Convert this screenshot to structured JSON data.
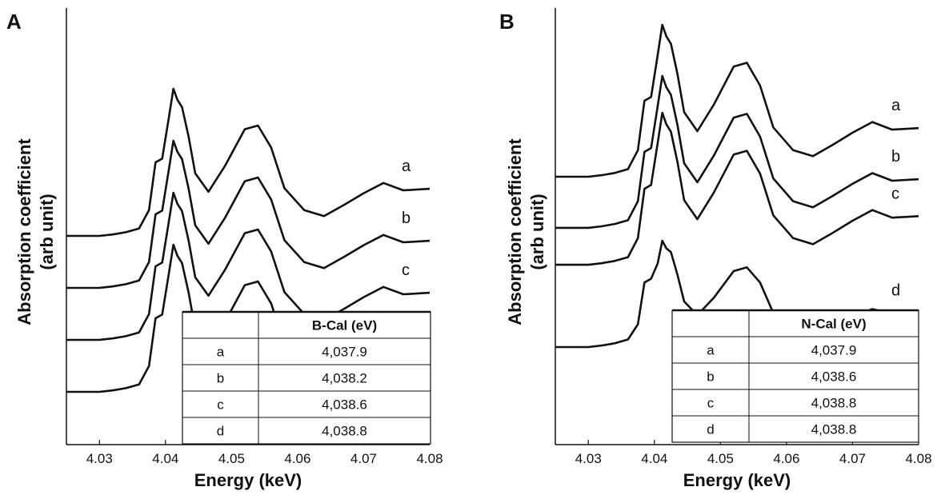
{
  "chart_data": [
    {
      "type": "line",
      "panel": "A",
      "xlabel": "Energy (keV)",
      "ylabel": [
        "Absorption coefficient",
        "(arb unit)"
      ],
      "xlim": [
        4.025,
        4.08
      ],
      "xticks": [
        "4.03",
        "4.04",
        "4.05",
        "4.06",
        "4.07",
        "4.08"
      ],
      "yticks": [],
      "series": [
        {
          "name": "a",
          "offset": 3,
          "x": [
            4.025,
            4.03,
            4.032,
            4.034,
            4.036,
            4.0375,
            4.0385,
            4.0395,
            4.0405,
            4.0412,
            4.0418,
            4.0425,
            4.0435,
            4.0445,
            4.0465,
            4.049,
            4.052,
            4.054,
            4.056,
            4.058,
            4.061,
            4.064,
            4.067,
            4.07,
            4.073,
            4.076,
            4.08
          ],
          "y": [
            0,
            0,
            0.02,
            0.05,
            0.1,
            0.35,
            1.0,
            1.05,
            1.6,
            2.0,
            1.85,
            1.75,
            1.35,
            0.85,
            0.6,
            0.95,
            1.45,
            1.5,
            1.2,
            0.65,
            0.35,
            0.27,
            0.42,
            0.58,
            0.72,
            0.62,
            0.64
          ]
        },
        {
          "name": "b",
          "offset": 2,
          "x": [
            4.025,
            4.03,
            4.032,
            4.034,
            4.036,
            4.0375,
            4.0385,
            4.0395,
            4.0405,
            4.0412,
            4.0418,
            4.0425,
            4.0435,
            4.0445,
            4.0465,
            4.049,
            4.052,
            4.054,
            4.056,
            4.058,
            4.061,
            4.064,
            4.067,
            4.07,
            4.073,
            4.076,
            4.08
          ],
          "y": [
            0,
            0,
            0.02,
            0.05,
            0.1,
            0.35,
            1.0,
            1.05,
            1.6,
            2.0,
            1.85,
            1.75,
            1.35,
            0.85,
            0.6,
            0.95,
            1.45,
            1.5,
            1.2,
            0.65,
            0.35,
            0.27,
            0.42,
            0.58,
            0.72,
            0.62,
            0.64
          ]
        },
        {
          "name": "c",
          "offset": 1,
          "x": [
            4.025,
            4.03,
            4.032,
            4.034,
            4.036,
            4.0375,
            4.0385,
            4.0395,
            4.0405,
            4.0412,
            4.0418,
            4.0425,
            4.0435,
            4.0445,
            4.0465,
            4.049,
            4.052,
            4.054,
            4.056,
            4.058,
            4.061,
            4.064,
            4.067,
            4.07,
            4.073,
            4.076,
            4.08
          ],
          "y": [
            0,
            0,
            0.02,
            0.05,
            0.1,
            0.35,
            1.0,
            1.05,
            1.6,
            2.0,
            1.85,
            1.75,
            1.35,
            0.85,
            0.6,
            0.95,
            1.45,
            1.5,
            1.2,
            0.65,
            0.35,
            0.27,
            0.42,
            0.58,
            0.72,
            0.62,
            0.64
          ]
        },
        {
          "name": "d",
          "offset": 0,
          "x": [
            4.025,
            4.03,
            4.032,
            4.034,
            4.036,
            4.0375,
            4.0385,
            4.0395,
            4.0405,
            4.0412,
            4.0418,
            4.0425,
            4.0435,
            4.0445,
            4.0465,
            4.049,
            4.052,
            4.054,
            4.056,
            4.058,
            4.061,
            4.064,
            4.067,
            4.07,
            4.073,
            4.076,
            4.08
          ],
          "y": [
            0,
            0,
            0.02,
            0.05,
            0.1,
            0.35,
            1.0,
            1.05,
            1.6,
            2.0,
            1.85,
            1.75,
            1.35,
            0.85,
            0.6,
            0.95,
            1.45,
            1.5,
            1.2,
            0.65,
            0.35,
            0.27,
            0.42,
            0.58,
            0.72,
            0.62,
            0.64
          ]
        }
      ],
      "table": {
        "header": [
          "",
          "B-Cal (eV)"
        ],
        "rows": [
          [
            "a",
            "4,037.9"
          ],
          [
            "b",
            "4,038.2"
          ],
          [
            "c",
            "4,038.6"
          ],
          [
            "d",
            "4,038.8"
          ]
        ]
      }
    },
    {
      "type": "line",
      "panel": "B",
      "xlabel": "Energy (keV)",
      "ylabel": [
        "Absorption coefficient",
        "(arb unit)"
      ],
      "xlim": [
        4.025,
        4.08
      ],
      "xticks": [
        "4.03",
        "4.04",
        "4.05",
        "4.06",
        "4.07",
        "4.08"
      ],
      "yticks": [],
      "series": [
        {
          "name": "a",
          "offset": 3,
          "x": [
            4.025,
            4.03,
            4.032,
            4.034,
            4.036,
            4.0375,
            4.0385,
            4.0395,
            4.0405,
            4.0412,
            4.0418,
            4.0425,
            4.0435,
            4.0445,
            4.0465,
            4.049,
            4.052,
            4.054,
            4.056,
            4.058,
            4.061,
            4.064,
            4.067,
            4.07,
            4.073,
            4.076,
            4.08
          ],
          "y": [
            0,
            0,
            0.02,
            0.05,
            0.1,
            0.35,
            1.0,
            1.05,
            1.6,
            2.0,
            1.85,
            1.75,
            1.35,
            0.85,
            0.6,
            0.95,
            1.45,
            1.5,
            1.2,
            0.65,
            0.35,
            0.27,
            0.42,
            0.58,
            0.72,
            0.62,
            0.64
          ]
        },
        {
          "name": "b",
          "offset": 2.1,
          "x": [
            4.025,
            4.03,
            4.032,
            4.034,
            4.036,
            4.0375,
            4.0385,
            4.0395,
            4.0405,
            4.0412,
            4.0418,
            4.0425,
            4.0435,
            4.0445,
            4.0465,
            4.049,
            4.052,
            4.054,
            4.056,
            4.058,
            4.061,
            4.064,
            4.067,
            4.07,
            4.073,
            4.076,
            4.08
          ],
          "y": [
            0,
            0,
            0.02,
            0.05,
            0.1,
            0.35,
            1.0,
            1.05,
            1.6,
            2.0,
            1.85,
            1.75,
            1.35,
            0.85,
            0.6,
            0.95,
            1.45,
            1.5,
            1.2,
            0.65,
            0.35,
            0.27,
            0.42,
            0.58,
            0.72,
            0.62,
            0.64
          ]
        },
        {
          "name": "c",
          "offset": 1.45,
          "x": [
            4.025,
            4.03,
            4.032,
            4.034,
            4.036,
            4.0375,
            4.0385,
            4.0395,
            4.0405,
            4.0412,
            4.0418,
            4.0425,
            4.0435,
            4.0445,
            4.0465,
            4.049,
            4.052,
            4.054,
            4.056,
            4.058,
            4.061,
            4.064,
            4.067,
            4.07,
            4.073,
            4.076,
            4.08
          ],
          "y": [
            0,
            0,
            0.02,
            0.05,
            0.1,
            0.35,
            1.0,
            1.05,
            1.6,
            2.0,
            1.85,
            1.75,
            1.35,
            0.85,
            0.6,
            0.95,
            1.45,
            1.5,
            1.2,
            0.65,
            0.35,
            0.27,
            0.42,
            0.58,
            0.72,
            0.62,
            0.64
          ]
        },
        {
          "name": "d",
          "offset": 0,
          "x": [
            4.025,
            4.03,
            4.032,
            4.034,
            4.036,
            4.0375,
            4.0385,
            4.0395,
            4.0405,
            4.0412,
            4.0418,
            4.0425,
            4.0435,
            4.0445,
            4.0465,
            4.049,
            4.052,
            4.054,
            4.056,
            4.058,
            4.061,
            4.064,
            4.067,
            4.07,
            4.073,
            4.076,
            4.08
          ],
          "y": [
            0,
            0,
            0.02,
            0.05,
            0.1,
            0.3,
            0.85,
            0.9,
            1.1,
            1.4,
            1.3,
            1.25,
            0.95,
            0.6,
            0.42,
            0.65,
            1.0,
            1.05,
            0.85,
            0.45,
            0.25,
            0.2,
            0.3,
            0.4,
            0.5,
            0.44,
            0.45
          ]
        }
      ],
      "table": {
        "header": [
          "",
          "N-Cal (eV)"
        ],
        "rows": [
          [
            "a",
            "4,037.9"
          ],
          [
            "b",
            "4,038.6"
          ],
          [
            "c",
            "4,038.8"
          ],
          [
            "d",
            "4,038.8"
          ]
        ]
      }
    }
  ]
}
